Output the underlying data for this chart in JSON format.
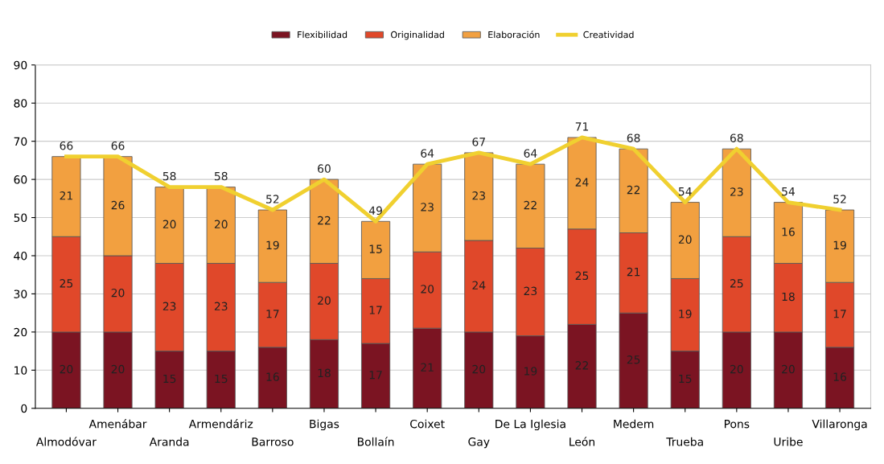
{
  "chart_data": {
    "type": "bar",
    "stacked": true,
    "categories": [
      "Almodóvar",
      "Amenábar",
      "Aranda",
      "Armendáriz",
      "Barroso",
      "Bigas",
      "Bollaín",
      "Coixet",
      "Gay",
      "De La Iglesia",
      "León",
      "Medem",
      "Trueba",
      "Pons",
      "Uribe",
      "Villaronga"
    ],
    "series": [
      {
        "name": "Flexibilidad",
        "color": "#7b1422",
        "values": [
          20,
          20,
          15,
          15,
          16,
          18,
          17,
          21,
          20,
          19,
          22,
          25,
          15,
          20,
          20,
          16
        ]
      },
      {
        "name": "Originalidad",
        "color": "#e0482a",
        "values": [
          25,
          20,
          23,
          23,
          17,
          20,
          17,
          20,
          24,
          23,
          25,
          21,
          19,
          25,
          18,
          17
        ]
      },
      {
        "name": "Elaboración",
        "color": "#f2a040",
        "values": [
          21,
          26,
          20,
          20,
          19,
          22,
          15,
          23,
          23,
          22,
          24,
          22,
          20,
          23,
          16,
          19
        ]
      },
      {
        "name": "Creatividad",
        "type": "line",
        "color": "#f0d030",
        "values": [
          66,
          66,
          58,
          58,
          52,
          60,
          49,
          64,
          67,
          64,
          71,
          68,
          54,
          68,
          54,
          52
        ]
      }
    ],
    "ylim": [
      0,
      90
    ],
    "yticks": [
      0,
      10,
      20,
      30,
      40,
      50,
      60,
      70,
      80,
      90
    ],
    "grid": "y",
    "legend": "top",
    "data_labels": true,
    "marker": "none",
    "line_style": "solid"
  }
}
